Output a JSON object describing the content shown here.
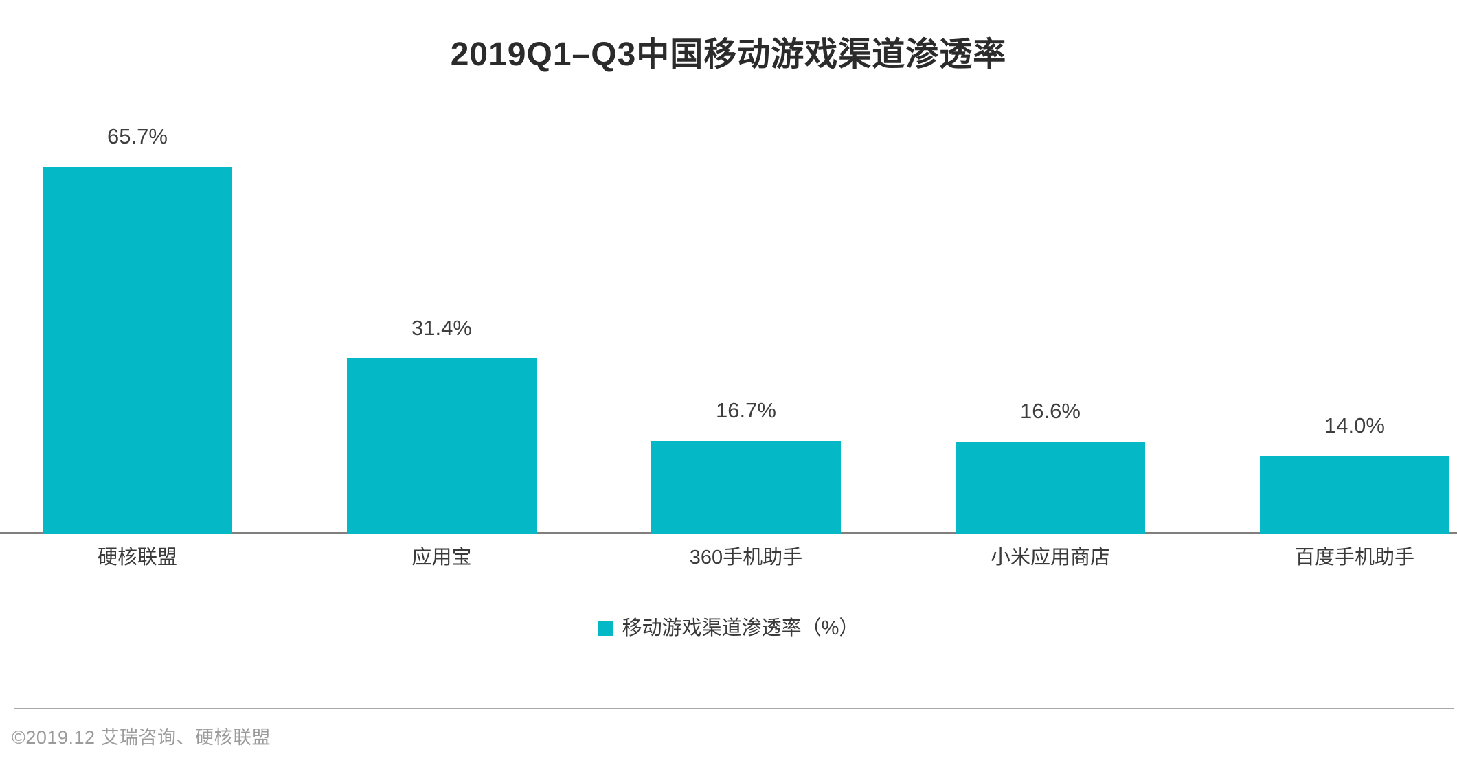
{
  "chart_data": {
    "type": "bar",
    "title": "2019Q1–Q3中国移动游戏渠道渗透率",
    "categories": [
      "硬核联盟",
      "应用宝",
      "360手机助手",
      "小米应用商店",
      "百度手机助手"
    ],
    "values": [
      65.7,
      31.4,
      16.7,
      16.6,
      14.0
    ],
    "value_labels": [
      "65.7%",
      "31.4%",
      "16.7%",
      "16.6%",
      "14.0%"
    ],
    "series": [
      {
        "name": "移动游戏渠道渗透率（%）",
        "values": [
          65.7,
          31.4,
          16.7,
          16.6,
          14.0
        ]
      }
    ],
    "xlabel": "",
    "ylabel": "",
    "ylim": [
      0,
      70
    ],
    "grid": false,
    "y_axis_visible": false,
    "legend_position": "bottom",
    "bar_color": "#05b8c6"
  },
  "legend": {
    "swatch_color": "#05b8c6",
    "label": "移动游戏渠道渗透率（%）"
  },
  "footer": {
    "source": "©2019.12 艾瑞咨询、硬核联盟"
  },
  "colors": {
    "bar": "#05b8c6",
    "axis_line": "#7f7f7f",
    "divider": "#a8a8a8",
    "title_text": "#2b2b2b",
    "label_text": "#3e3e3e",
    "footer_text": "#9b9b9b"
  }
}
